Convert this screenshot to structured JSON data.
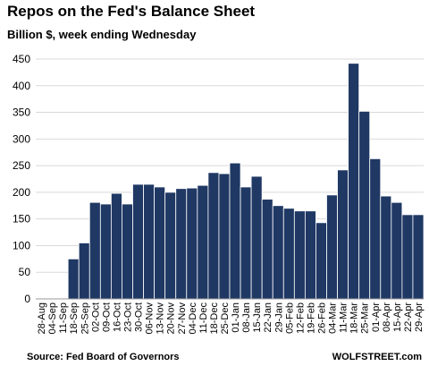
{
  "chart_data": {
    "type": "bar",
    "title": "Repos on the Fed's Balance Sheet",
    "subtitle": "Billion $, week ending Wednesday",
    "source": "Source: Fed Board of Governors",
    "credit": "WOLFSTREET.com",
    "categories": [
      "28-Aug",
      "04-Sep",
      "11-Sep",
      "18-Sep",
      "25-Sep",
      "02-Oct",
      "09-Oct",
      "16-Oct",
      "23-Oct",
      "30-Oct",
      "06-Nov",
      "13-Nov",
      "20-Nov",
      "27-Nov",
      "04-Dec",
      "11-Dec",
      "18-Dec",
      "25-Dec",
      "01-Jan",
      "08-Jan",
      "15-Jan",
      "22-Jan",
      "29-Jan",
      "05-Feb",
      "12-Feb",
      "19-Feb",
      "26-Feb",
      "04-Mar",
      "11-Mar",
      "18-Mar",
      "25-Mar",
      "01-Apr",
      "08-Apr",
      "15-Apr",
      "22-Apr",
      "29-Apr"
    ],
    "values": [
      null,
      null,
      null,
      75,
      105,
      181,
      178,
      198,
      178,
      215,
      215,
      210,
      200,
      207,
      208,
      213,
      237,
      235,
      255,
      210,
      230,
      187,
      175,
      170,
      165,
      165,
      143,
      195,
      242,
      442,
      352,
      263,
      193,
      181,
      158,
      158
    ],
    "color": "#1f3864",
    "ylim": [
      0,
      450
    ],
    "yticks": [
      0,
      50,
      100,
      150,
      200,
      250,
      300,
      350,
      400,
      450
    ],
    "grid": true
  }
}
